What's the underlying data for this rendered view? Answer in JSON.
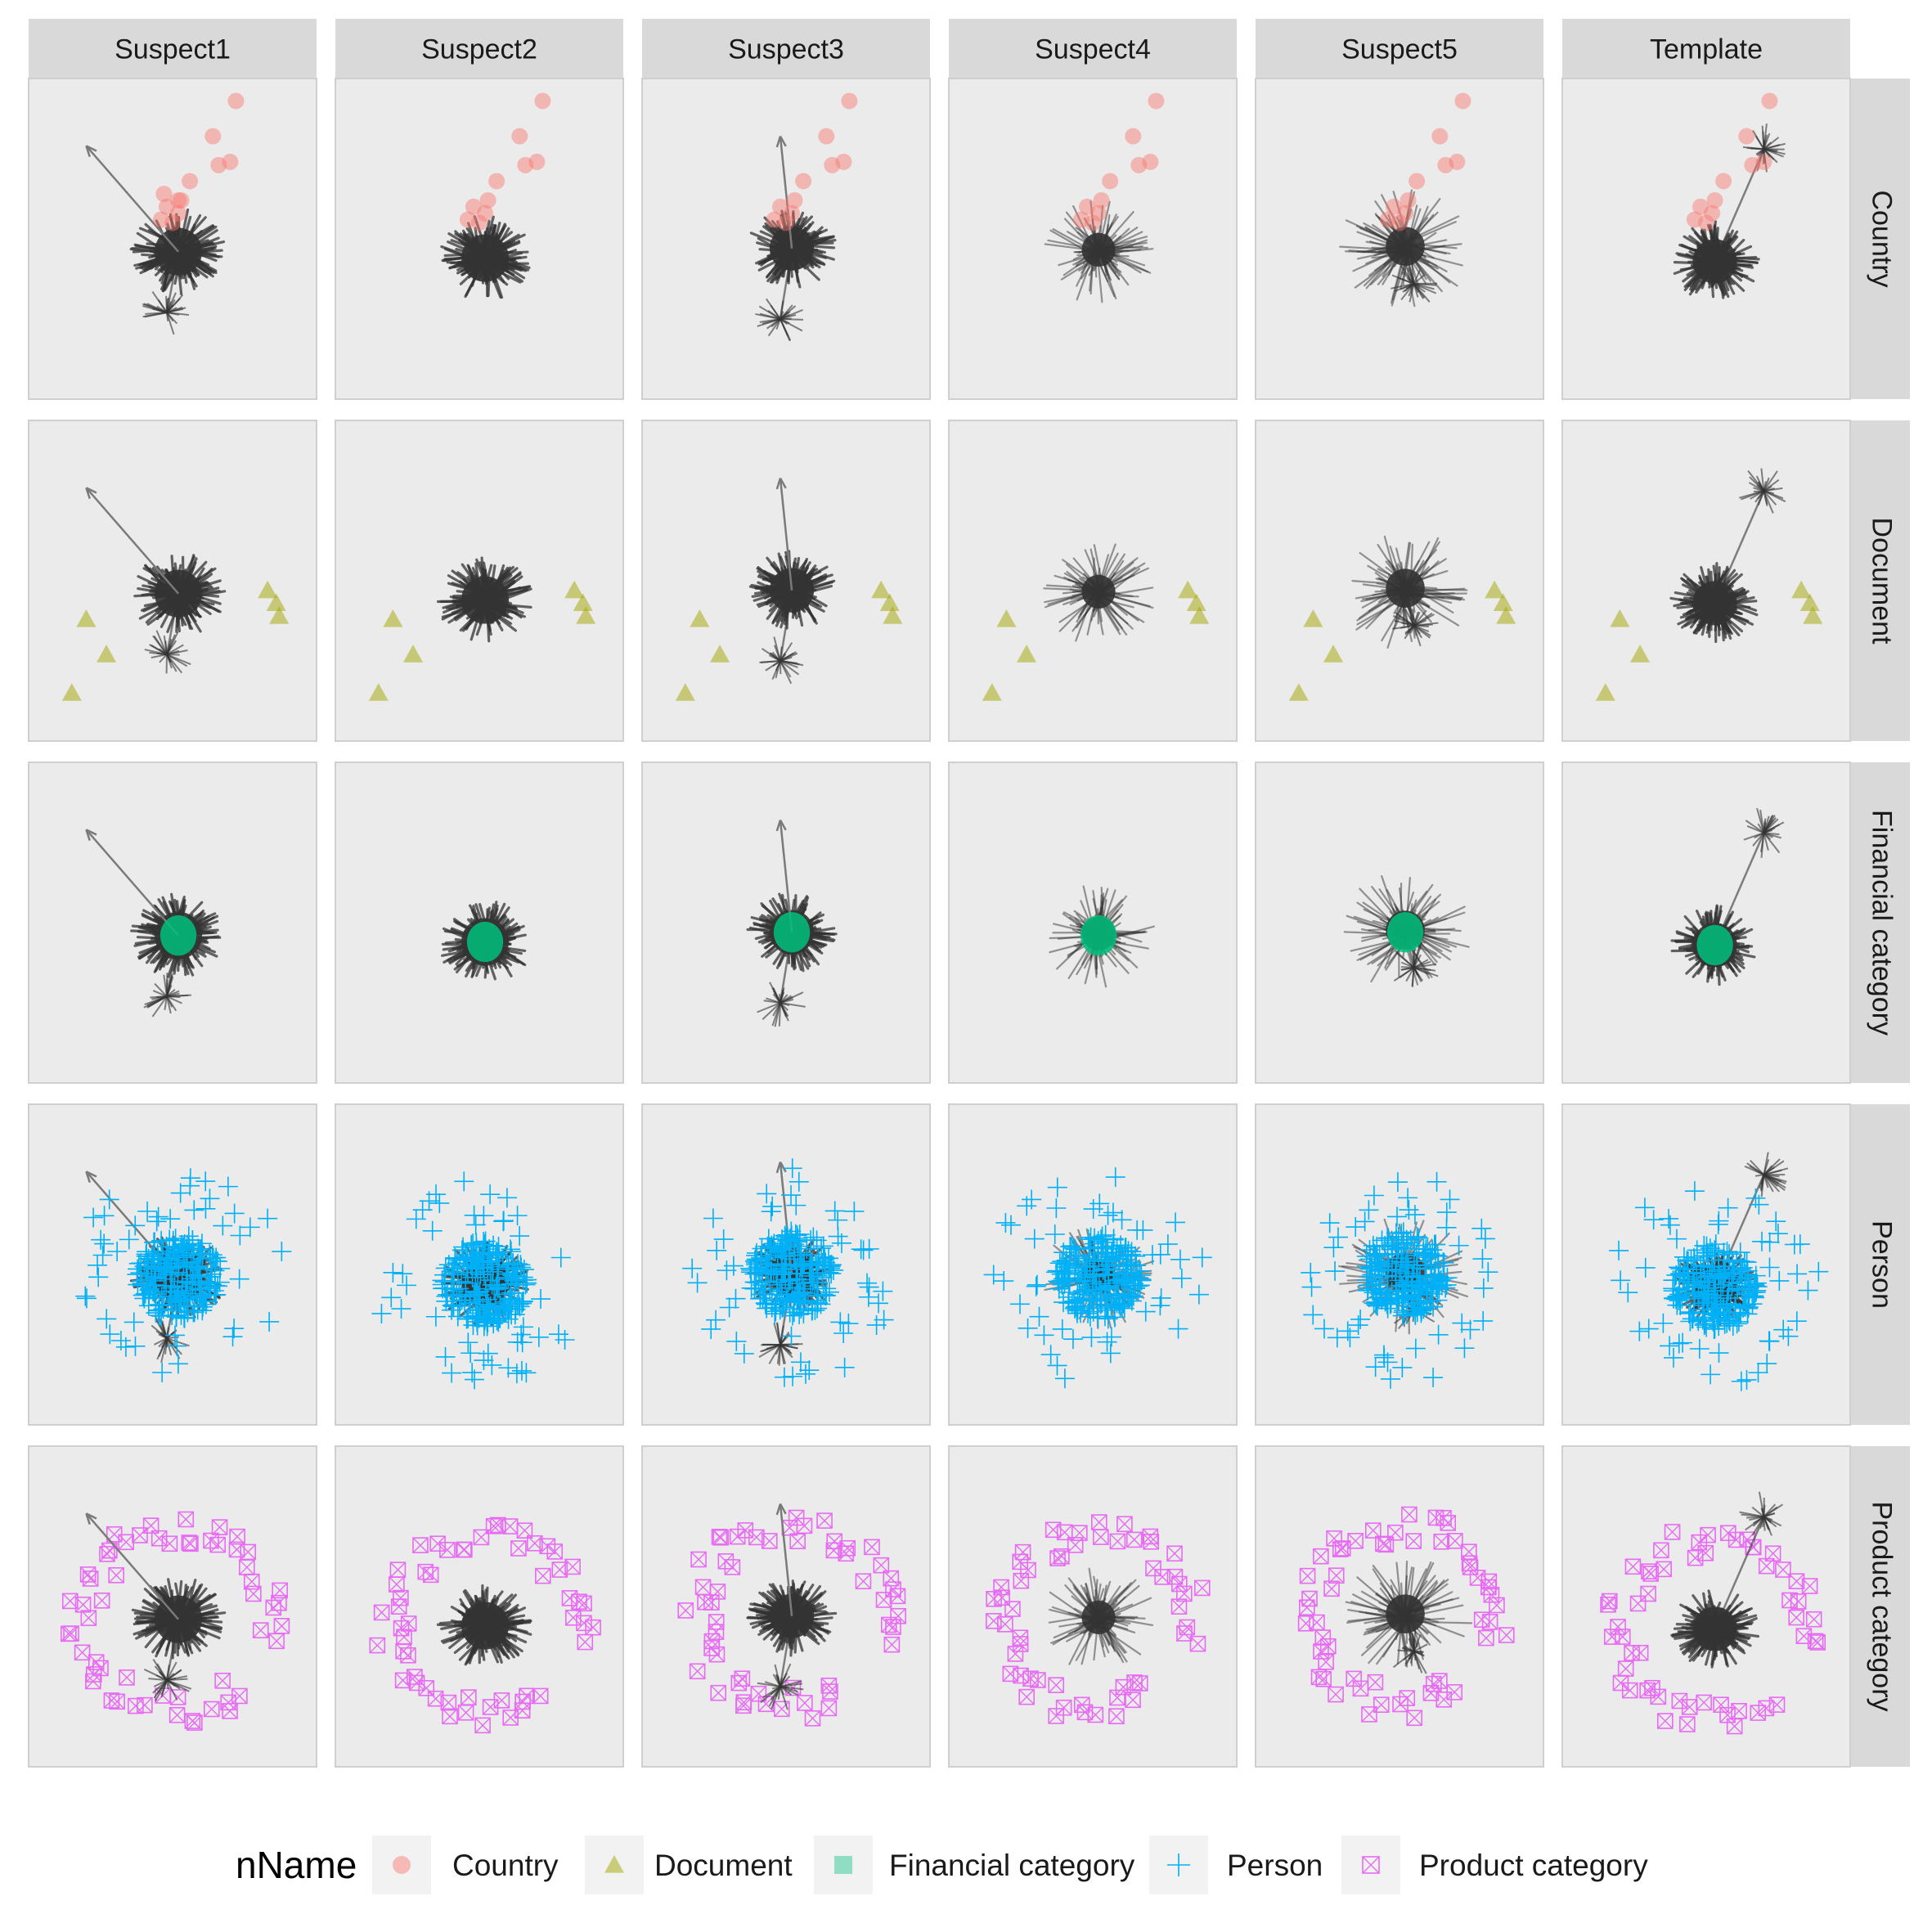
{
  "chart_data": {
    "type": "scatter",
    "facet_columns": [
      "Suspect1",
      "Suspect2",
      "Suspect3",
      "Suspect4",
      "Suspect5",
      "Template"
    ],
    "facet_rows": [
      "Country",
      "Document",
      "Financial category",
      "Person",
      "Product category"
    ],
    "legend": {
      "title": "nName",
      "position": "bottom",
      "entries": [
        {
          "label": "Country",
          "shape": "circle",
          "color": "#F8766D"
        },
        {
          "label": "Document",
          "shape": "triangle",
          "color": "#A3A500"
        },
        {
          "label": "Financial category",
          "shape": "square",
          "color": "#00BF7D"
        },
        {
          "label": "Person",
          "shape": "plus",
          "color": "#00B0F6"
        },
        {
          "label": "Product category",
          "shape": "boxx",
          "color": "#E76BF3"
        }
      ]
    },
    "axes": {
      "ticks": "none",
      "grid": false
    },
    "panel_background": "#EBEBEB",
    "strip_background": "#D9D9D9",
    "edge_color": "#333333",
    "panels": [
      {
        "facet": "Suspect1",
        "network": {
          "cx": 0.52,
          "cy": 0.46,
          "r": 0.15,
          "style": "dense",
          "tail": {
            "x": 0.2,
            "y": 0.79
          },
          "subcluster": {
            "cx": 0.48,
            "cy": 0.27
          }
        },
        "country": [
          [
            0.72,
            0.93
          ],
          [
            0.64,
            0.82
          ],
          [
            0.66,
            0.73
          ],
          [
            0.7,
            0.74
          ],
          [
            0.56,
            0.68
          ],
          [
            0.53,
            0.62
          ],
          [
            0.48,
            0.6
          ],
          [
            0.52,
            0.58
          ],
          [
            0.46,
            0.56
          ],
          [
            0.5,
            0.55
          ],
          [
            0.52,
            0.62
          ],
          [
            0.47,
            0.64
          ]
        ],
        "document": [
          [
            0.15,
            0.15
          ],
          [
            0.27,
            0.27
          ],
          [
            0.2,
            0.38
          ],
          [
            0.83,
            0.47
          ],
          [
            0.86,
            0.43
          ],
          [
            0.87,
            0.39
          ]
        ],
        "financial": {
          "cx": 0.52,
          "cy": 0.46,
          "r": 0.07
        },
        "person": {
          "cx": 0.52,
          "cy": 0.46,
          "r": 0.25
        },
        "product": {
          "cx": 0.52,
          "cy": 0.46,
          "r": 0.35
        }
      },
      {
        "facet": "Suspect2",
        "network": {
          "cx": 0.52,
          "cy": 0.44,
          "r": 0.15,
          "style": "dense"
        },
        "country": [
          [
            0.72,
            0.93
          ],
          [
            0.64,
            0.82
          ],
          [
            0.66,
            0.73
          ],
          [
            0.7,
            0.74
          ],
          [
            0.56,
            0.68
          ],
          [
            0.53,
            0.62
          ],
          [
            0.48,
            0.6
          ],
          [
            0.52,
            0.58
          ],
          [
            0.46,
            0.56
          ],
          [
            0.5,
            0.55
          ]
        ],
        "document": [
          [
            0.15,
            0.15
          ],
          [
            0.27,
            0.27
          ],
          [
            0.2,
            0.38
          ],
          [
            0.83,
            0.47
          ],
          [
            0.86,
            0.43
          ],
          [
            0.87,
            0.39
          ]
        ],
        "financial": {
          "cx": 0.52,
          "cy": 0.44,
          "r": 0.07
        },
        "person": {
          "cx": 0.52,
          "cy": 0.44,
          "r": 0.25
        },
        "product": {
          "cx": 0.52,
          "cy": 0.44,
          "r": 0.35
        }
      },
      {
        "facet": "Suspect3",
        "network": {
          "cx": 0.52,
          "cy": 0.47,
          "r": 0.14,
          "style": "dense",
          "subcluster": {
            "cx": 0.48,
            "cy": 0.25
          },
          "tail": {
            "x": 0.48,
            "y": 0.82
          }
        },
        "country": [
          [
            0.72,
            0.93
          ],
          [
            0.64,
            0.82
          ],
          [
            0.66,
            0.73
          ],
          [
            0.7,
            0.74
          ],
          [
            0.56,
            0.68
          ],
          [
            0.53,
            0.62
          ],
          [
            0.48,
            0.6
          ],
          [
            0.52,
            0.58
          ],
          [
            0.46,
            0.56
          ],
          [
            0.5,
            0.55
          ]
        ],
        "document": [
          [
            0.15,
            0.15
          ],
          [
            0.27,
            0.27
          ],
          [
            0.2,
            0.38
          ],
          [
            0.83,
            0.47
          ],
          [
            0.86,
            0.43
          ],
          [
            0.87,
            0.39
          ]
        ],
        "financial": {
          "cx": 0.52,
          "cy": 0.47,
          "r": 0.07
        },
        "person": {
          "cx": 0.52,
          "cy": 0.47,
          "r": 0.25
        },
        "product": {
          "cx": 0.52,
          "cy": 0.47,
          "r": 0.35
        }
      },
      {
        "facet": "Suspect4",
        "network": {
          "cx": 0.52,
          "cy": 0.46,
          "r": 0.13,
          "style": "sparse"
        },
        "country": [
          [
            0.72,
            0.93
          ],
          [
            0.64,
            0.82
          ],
          [
            0.66,
            0.73
          ],
          [
            0.7,
            0.74
          ],
          [
            0.56,
            0.68
          ],
          [
            0.53,
            0.62
          ],
          [
            0.48,
            0.6
          ],
          [
            0.52,
            0.58
          ],
          [
            0.46,
            0.56
          ],
          [
            0.5,
            0.55
          ]
        ],
        "document": [
          [
            0.15,
            0.15
          ],
          [
            0.27,
            0.27
          ],
          [
            0.2,
            0.38
          ],
          [
            0.83,
            0.47
          ],
          [
            0.86,
            0.43
          ],
          [
            0.87,
            0.39
          ]
        ],
        "financial": {
          "cx": 0.52,
          "cy": 0.46,
          "r": 0.07
        },
        "person": {
          "cx": 0.52,
          "cy": 0.46,
          "r": 0.25
        },
        "product": {
          "cx": 0.52,
          "cy": 0.46,
          "r": 0.35
        }
      },
      {
        "facet": "Suspect5",
        "network": {
          "cx": 0.52,
          "cy": 0.47,
          "r": 0.15,
          "style": "sparse",
          "subcluster": {
            "cx": 0.55,
            "cy": 0.36
          }
        },
        "country": [
          [
            0.72,
            0.93
          ],
          [
            0.64,
            0.82
          ],
          [
            0.66,
            0.73
          ],
          [
            0.7,
            0.74
          ],
          [
            0.56,
            0.68
          ],
          [
            0.53,
            0.62
          ],
          [
            0.48,
            0.6
          ],
          [
            0.52,
            0.58
          ],
          [
            0.46,
            0.56
          ],
          [
            0.5,
            0.55
          ]
        ],
        "document": [
          [
            0.15,
            0.15
          ],
          [
            0.27,
            0.27
          ],
          [
            0.2,
            0.38
          ],
          [
            0.83,
            0.47
          ],
          [
            0.86,
            0.43
          ],
          [
            0.87,
            0.39
          ]
        ],
        "financial": {
          "cx": 0.52,
          "cy": 0.47,
          "r": 0.07
        },
        "person": {
          "cx": 0.52,
          "cy": 0.47,
          "r": 0.25
        },
        "product": {
          "cx": 0.52,
          "cy": 0.47,
          "r": 0.35
        }
      },
      {
        "facet": "Template",
        "network": {
          "cx": 0.53,
          "cy": 0.43,
          "r": 0.14,
          "style": "dense",
          "subcluster": {
            "cx": 0.7,
            "cy": 0.78
          }
        },
        "country": [
          [
            0.72,
            0.93
          ],
          [
            0.64,
            0.82
          ],
          [
            0.66,
            0.73
          ],
          [
            0.7,
            0.74
          ],
          [
            0.56,
            0.68
          ],
          [
            0.53,
            0.62
          ],
          [
            0.48,
            0.6
          ],
          [
            0.52,
            0.58
          ],
          [
            0.46,
            0.56
          ],
          [
            0.5,
            0.55
          ]
        ],
        "document": [
          [
            0.15,
            0.15
          ],
          [
            0.27,
            0.27
          ],
          [
            0.2,
            0.38
          ],
          [
            0.83,
            0.47
          ],
          [
            0.86,
            0.43
          ],
          [
            0.87,
            0.39
          ]
        ],
        "financial": {
          "cx": 0.53,
          "cy": 0.43,
          "r": 0.07
        },
        "person": {
          "cx": 0.53,
          "cy": 0.43,
          "r": 0.25
        },
        "product": {
          "cx": 0.53,
          "cy": 0.43,
          "r": 0.35
        }
      }
    ]
  }
}
